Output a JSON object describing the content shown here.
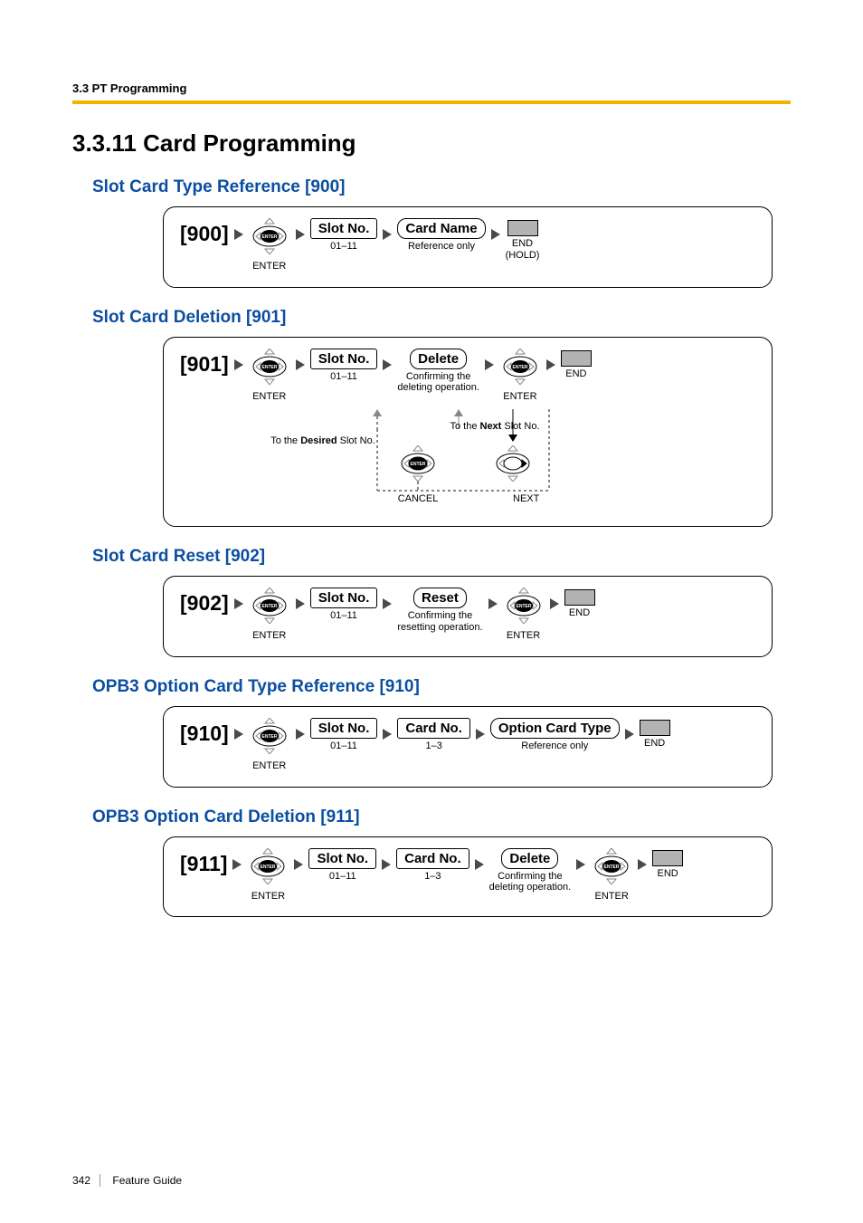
{
  "header": {
    "running": "3.3 PT Programming",
    "title": "3.3.11  Card Programming"
  },
  "colors": {
    "accent_rule": "#f0b400",
    "link_blue": "#0b4ea2",
    "end_fill": "#b3b3b3"
  },
  "sections": [
    {
      "id": "s900",
      "heading": "Slot Card Type Reference [900]",
      "code": "[900]",
      "steps": [
        {
          "type": "enter",
          "sub": "ENTER"
        },
        {
          "type": "pill",
          "label": "Slot No.",
          "sub": "01–11"
        },
        {
          "type": "pill-round",
          "label": "Card Name",
          "sub": "Reference only"
        },
        {
          "type": "end",
          "sub": "END\n(HOLD)"
        }
      ]
    },
    {
      "id": "s901",
      "heading": "Slot Card Deletion [901]",
      "code": "[901]",
      "steps": [
        {
          "type": "enter",
          "sub": "ENTER"
        },
        {
          "type": "pill",
          "label": "Slot No.",
          "sub": "01–11"
        },
        {
          "type": "pill-round",
          "label": "Delete",
          "sub": "Confirming the\ndeleting operation."
        },
        {
          "type": "enter",
          "sub": "ENTER"
        },
        {
          "type": "end",
          "sub": "END"
        }
      ],
      "extra": {
        "desired": "To the Desired Slot No.",
        "next": "To the Next Slot No.",
        "cancel": "CANCEL",
        "next_label": "NEXT"
      }
    },
    {
      "id": "s902",
      "heading": "Slot Card Reset [902]",
      "code": "[902]",
      "steps": [
        {
          "type": "enter",
          "sub": "ENTER"
        },
        {
          "type": "pill",
          "label": "Slot No.",
          "sub": "01–11"
        },
        {
          "type": "pill-round",
          "label": "Reset",
          "sub": "Confirming the\nresetting operation."
        },
        {
          "type": "enter",
          "sub": "ENTER"
        },
        {
          "type": "end",
          "sub": "END"
        }
      ]
    },
    {
      "id": "s910",
      "heading": "OPB3 Option Card Type Reference [910]",
      "code": "[910]",
      "steps": [
        {
          "type": "enter",
          "sub": "ENTER"
        },
        {
          "type": "pill",
          "label": "Slot No.",
          "sub": "01–11"
        },
        {
          "type": "pill",
          "label": "Card No.",
          "sub": "1–3"
        },
        {
          "type": "pill-round",
          "label": "Option Card Type",
          "sub": "Reference only"
        },
        {
          "type": "end",
          "sub": "END"
        }
      ]
    },
    {
      "id": "s911",
      "heading": "OPB3 Option Card Deletion [911]",
      "code": "[911]",
      "steps": [
        {
          "type": "enter",
          "sub": "ENTER"
        },
        {
          "type": "pill",
          "label": "Slot No.",
          "sub": "01–11"
        },
        {
          "type": "pill",
          "label": "Card No.",
          "sub": "1–3"
        },
        {
          "type": "pill-round",
          "label": "Delete",
          "sub": "Confirming the\ndeleting operation."
        },
        {
          "type": "enter",
          "sub": "ENTER"
        },
        {
          "type": "end",
          "sub": "END"
        }
      ]
    }
  ],
  "footer": {
    "page_number": "342",
    "doc_title": "Feature Guide"
  }
}
